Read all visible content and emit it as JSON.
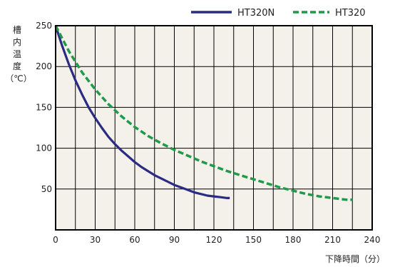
{
  "chart_data": {
    "type": "line",
    "title": "",
    "xlabel": "下降時間（分）",
    "ylabel": "槽内温度（℃）",
    "ylabel_chars": [
      "槽",
      "内",
      "温",
      "度",
      "（℃）"
    ],
    "xlim": [
      0,
      240
    ],
    "ylim": [
      0,
      250
    ],
    "x_ticks": [
      0,
      30,
      60,
      90,
      120,
      150,
      180,
      210,
      240
    ],
    "x_tick_labels": [
      "0",
      "30",
      "60",
      "90",
      "120",
      "150",
      "180",
      "210",
      "240"
    ],
    "y_ticks": [
      50,
      100,
      150,
      200,
      250
    ],
    "y_tick_labels": [
      "50",
      "100",
      "150",
      "200",
      "250"
    ],
    "x_minor_step": 15,
    "y_minor_step": 50,
    "grid": true,
    "legend_position": "top-right",
    "plot_background": "#f4f1ea",
    "series": [
      {
        "name": "HT320N",
        "color": "#2a2b82",
        "dash": "solid",
        "x": [
          0,
          5,
          10,
          15,
          20,
          25,
          30,
          35,
          40,
          45,
          50,
          55,
          60,
          65,
          70,
          75,
          80,
          85,
          90,
          95,
          100,
          105,
          110,
          115,
          120,
          125,
          130,
          132
        ],
        "y": [
          250,
          225,
          203,
          183,
          166,
          150,
          137,
          125,
          114,
          105,
          97,
          90,
          83,
          77,
          72,
          67,
          63,
          59,
          55,
          52,
          49,
          46,
          44,
          42,
          41,
          40,
          39,
          39
        ]
      },
      {
        "name": "HT320",
        "color": "#1f9a4a",
        "dash": "dashed",
        "x": [
          0,
          10,
          20,
          30,
          40,
          50,
          60,
          70,
          80,
          90,
          100,
          110,
          120,
          130,
          140,
          150,
          160,
          170,
          180,
          190,
          200,
          210,
          220,
          225
        ],
        "y": [
          250,
          219,
          193,
          172,
          154,
          139,
          126,
          115,
          106,
          98,
          91,
          84,
          78,
          72,
          67,
          62,
          57,
          52,
          48,
          44,
          41,
          39,
          37,
          37
        ]
      }
    ]
  }
}
